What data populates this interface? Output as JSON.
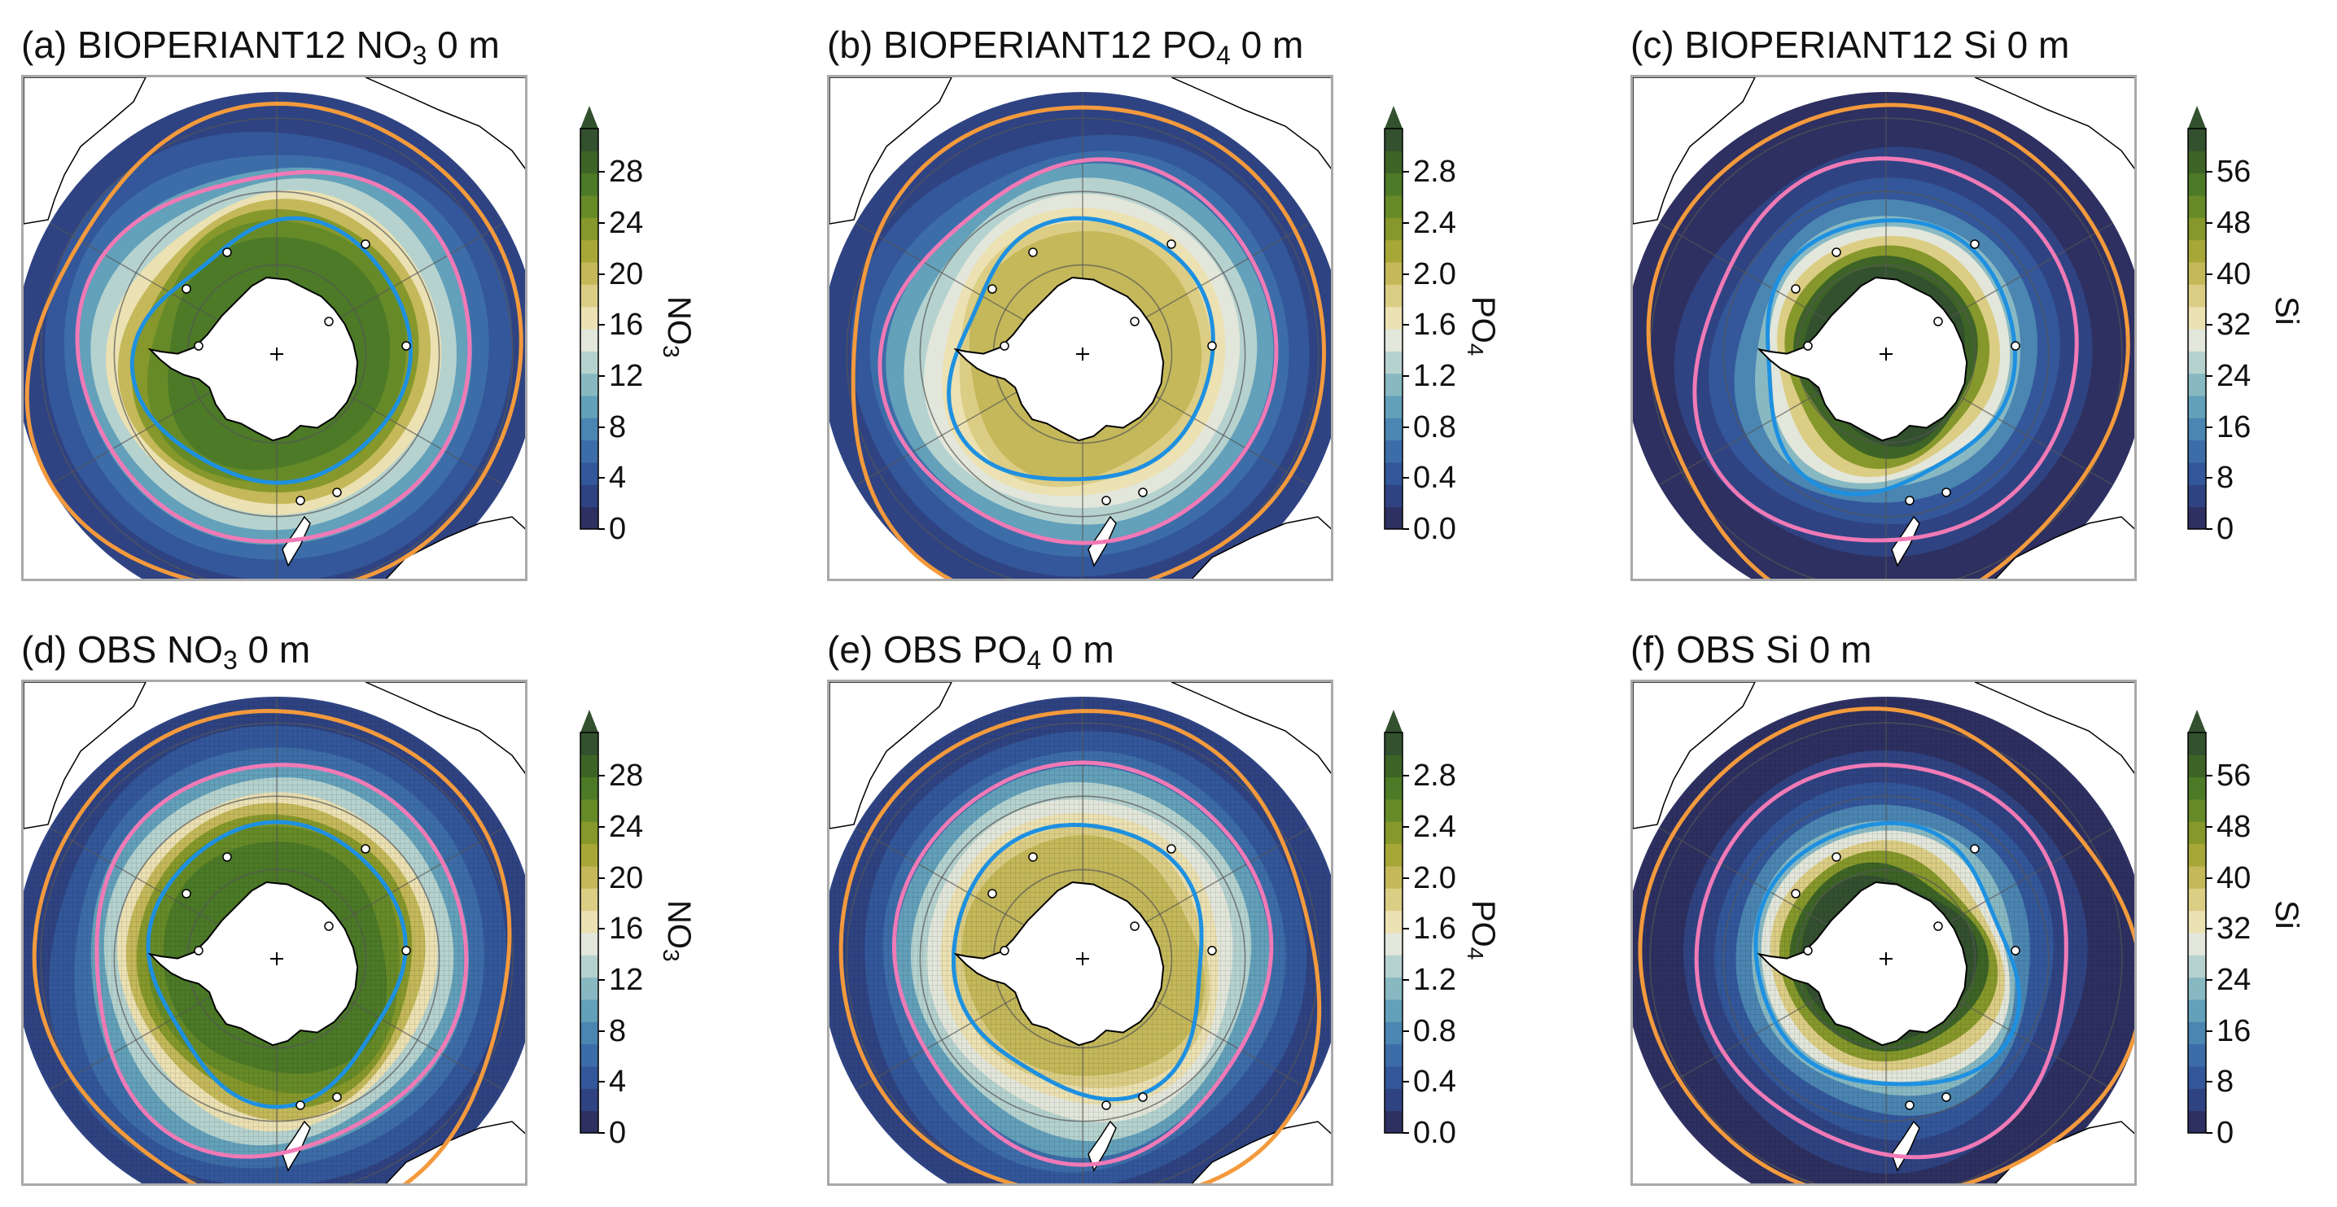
{
  "panels": [
    {
      "id": "a",
      "title_pre": "(a) BIOPERIANT12 ",
      "title_chem": "NO",
      "title_sub": "3",
      "title_post": " 0 m",
      "field": "no3",
      "source": "model",
      "cbar_label": "NO",
      "cbar_sub": "3",
      "ticks": [
        "0",
        "4",
        "8",
        "12",
        "16",
        "20",
        "24",
        "28"
      ]
    },
    {
      "id": "b",
      "title_pre": "(b) BIOPERIANT12 ",
      "title_chem": "PO",
      "title_sub": "4",
      "title_post": " 0 m",
      "field": "po4",
      "source": "model",
      "cbar_label": "PO",
      "cbar_sub": "4",
      "ticks": [
        "0.0",
        "0.4",
        "0.8",
        "1.2",
        "1.6",
        "2.0",
        "2.4",
        "2.8"
      ]
    },
    {
      "id": "c",
      "title_pre": "(c) BIOPERIANT12 ",
      "title_chem": "Si",
      "title_sub": "",
      "title_post": " 0 m",
      "field": "si",
      "source": "model",
      "cbar_label": "Si",
      "cbar_sub": "",
      "ticks": [
        "0",
        "8",
        "16",
        "24",
        "32",
        "40",
        "48",
        "56"
      ]
    },
    {
      "id": "d",
      "title_pre": "(d) OBS ",
      "title_chem": "NO",
      "title_sub": "3",
      "title_post": " 0 m",
      "field": "no3",
      "source": "obs",
      "cbar_label": "NO",
      "cbar_sub": "3",
      "ticks": [
        "0",
        "4",
        "8",
        "12",
        "16",
        "20",
        "24",
        "28"
      ]
    },
    {
      "id": "e",
      "title_pre": "(e) OBS ",
      "title_chem": "PO",
      "title_sub": "4",
      "title_post": " 0 m",
      "field": "po4",
      "source": "obs",
      "cbar_label": "PO",
      "cbar_sub": "4",
      "ticks": [
        "0.0",
        "0.4",
        "0.8",
        "1.2",
        "1.6",
        "2.0",
        "2.4",
        "2.8"
      ]
    },
    {
      "id": "f",
      "title_pre": "(f) OBS ",
      "title_chem": "Si",
      "title_sub": "",
      "title_post": " 0 m",
      "field": "si",
      "source": "obs",
      "cbar_label": "Si",
      "cbar_sub": "",
      "ticks": [
        "0",
        "8",
        "16",
        "24",
        "32",
        "40",
        "48",
        "56"
      ]
    }
  ],
  "colormap": [
    "#2d3060",
    "#2f4382",
    "#33579a",
    "#3d6da8",
    "#4b85b1",
    "#63a0ba",
    "#88b9c3",
    "#b5d2cf",
    "#e3e6da",
    "#ebe1b2",
    "#dccd85",
    "#c4b85a",
    "#a7a737",
    "#86982b",
    "#668a28",
    "#4c7a27",
    "#3d6426",
    "#33502f"
  ],
  "colorbar": {
    "extend": "max"
  },
  "front_colors": {
    "outer": "#f39a3d",
    "middle": "#f07ab6",
    "inner": "#1e90e0"
  },
  "land_color": "#ffffff",
  "coast_color": "#000000",
  "grid_color": "#555555"
}
